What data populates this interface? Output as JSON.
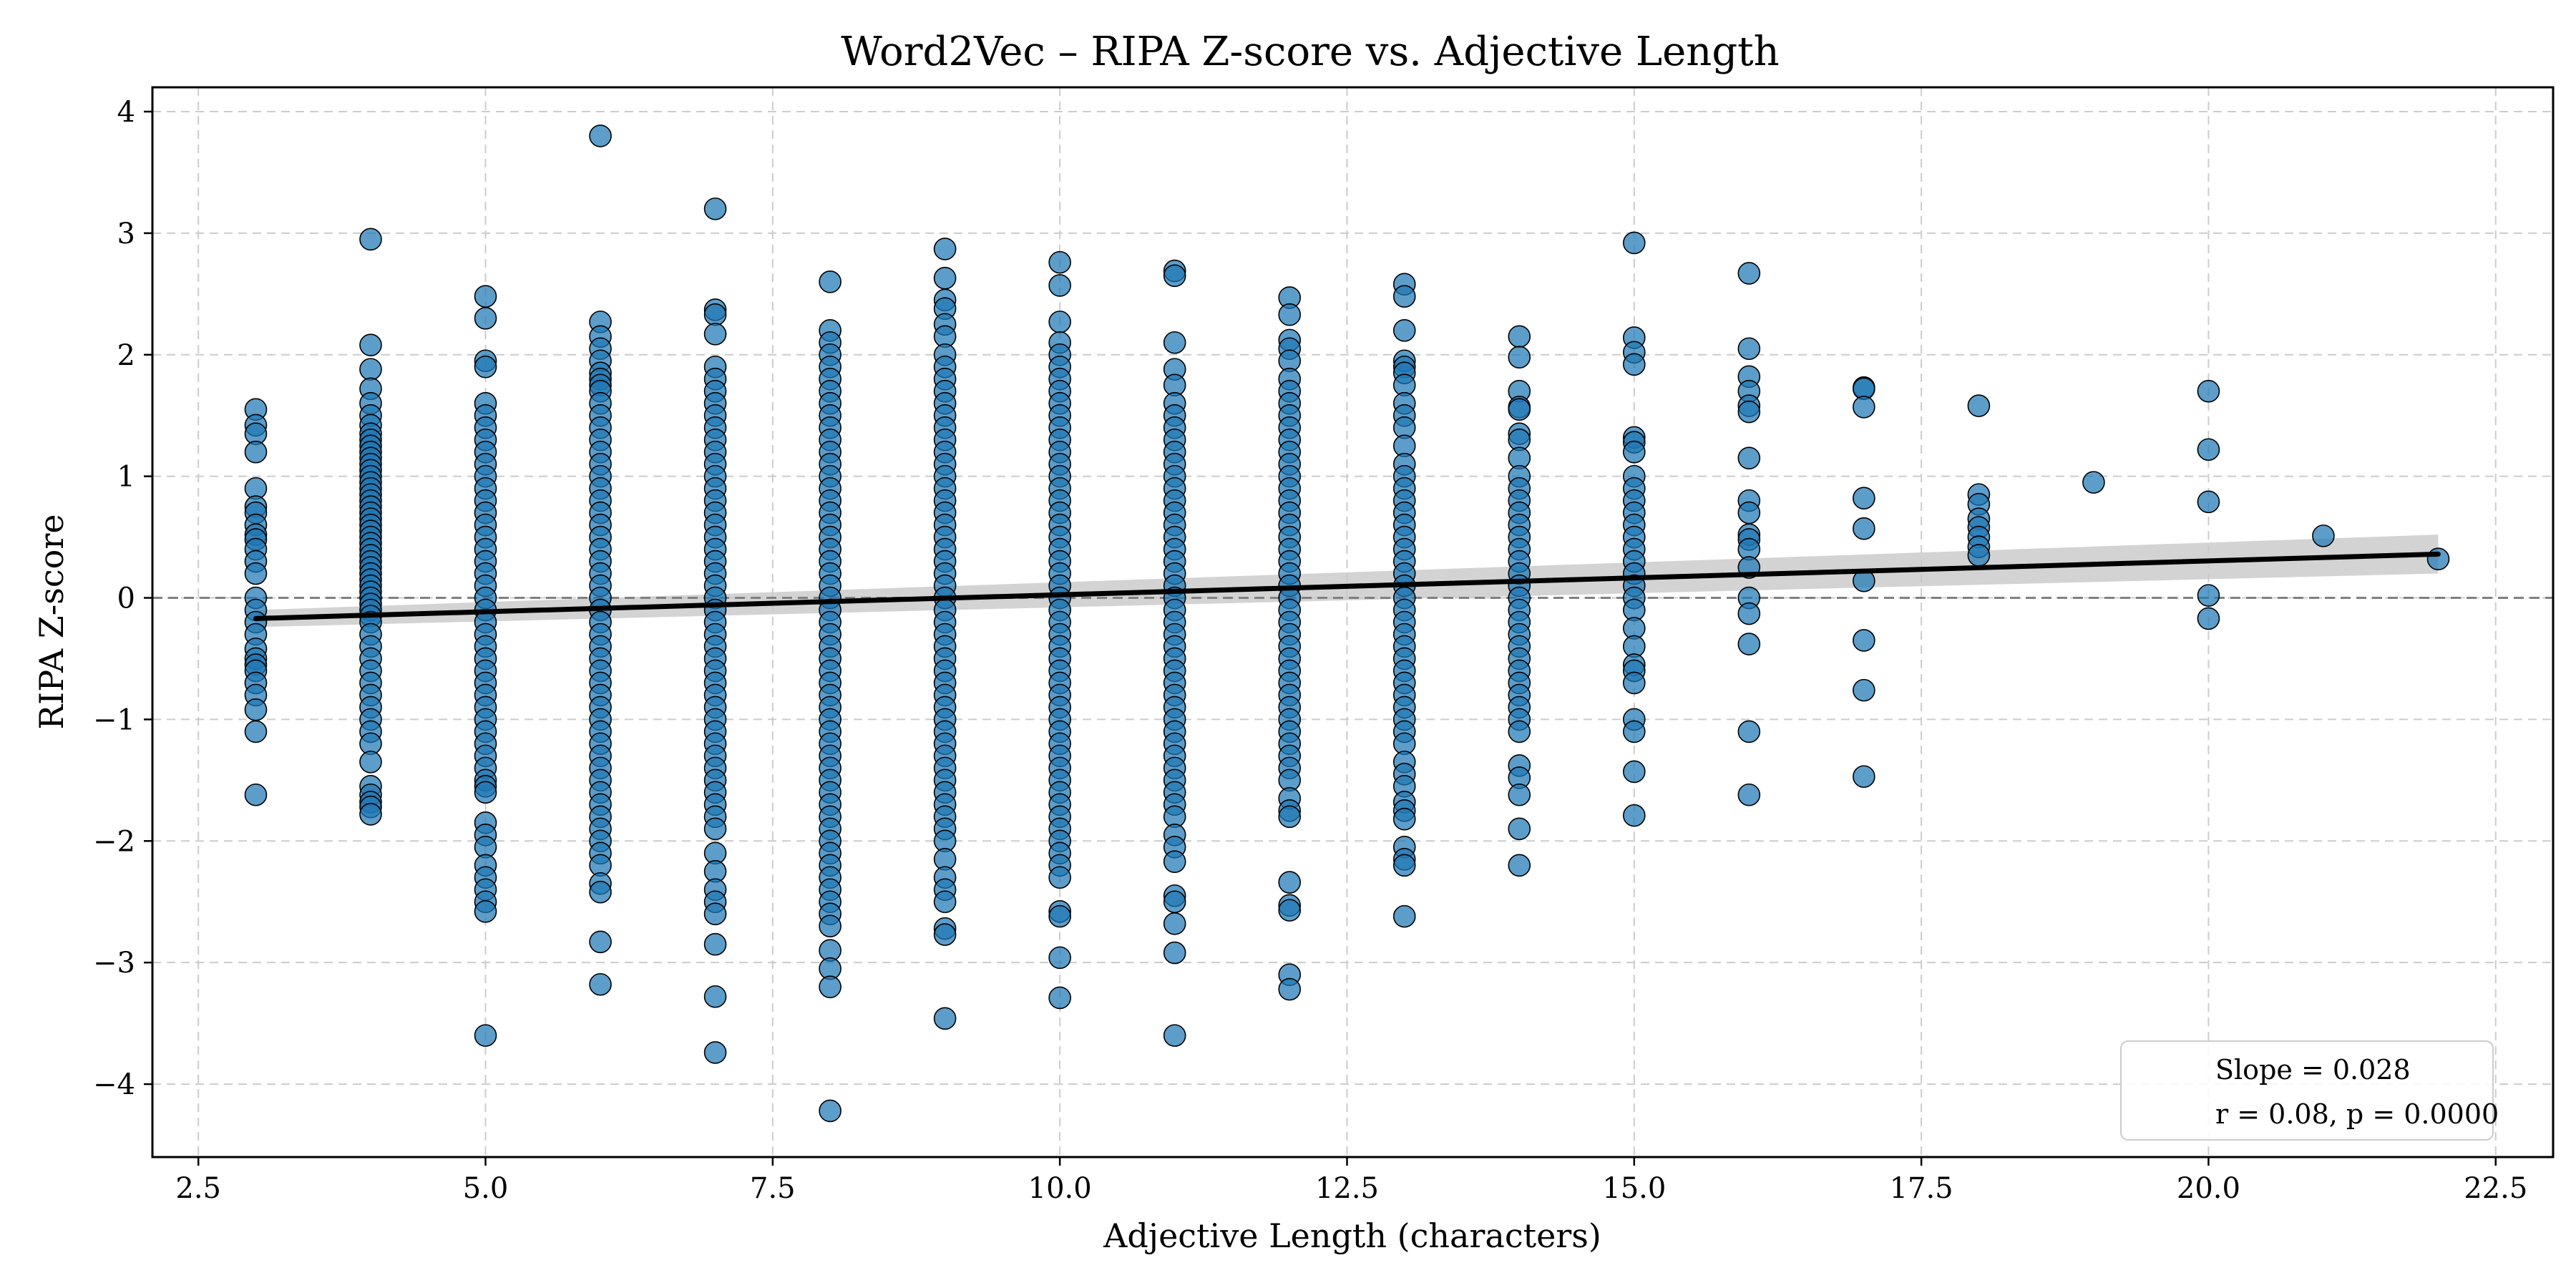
{
  "chart_data": {
    "type": "scatter",
    "title": "Word2Vec – RIPA Z-score vs. Adjective Length",
    "xlabel": "Adjective Length (characters)",
    "ylabel": "RIPA Z-score",
    "xlim": [
      2.1,
      23.0
    ],
    "ylim": [
      -4.6,
      4.2
    ],
    "xticks": [
      2.5,
      5.0,
      7.5,
      10.0,
      12.5,
      15.0,
      17.5,
      20.0,
      22.5
    ],
    "xtick_labels": [
      "2.5",
      "5.0",
      "7.5",
      "10.0",
      "12.5",
      "15.0",
      "17.5",
      "20.0",
      "22.5"
    ],
    "yticks": [
      -4,
      -3,
      -2,
      -1,
      0,
      1,
      2,
      3,
      4
    ],
    "ytick_labels": [
      "−4",
      "−3",
      "−2",
      "−1",
      "0",
      "1",
      "2",
      "3",
      "4"
    ],
    "grid": true,
    "zero_line": 0,
    "legend_position": "lower-right",
    "annotation": {
      "line1": "Slope = 0.028",
      "line2": "r = 0.08, p = 0.0000"
    },
    "regression": {
      "slope": 0.028,
      "x": [
        3,
        22
      ],
      "y": [
        -0.17,
        0.36
      ],
      "ci_half_width_start": 0.07,
      "ci_half_width_end": 0.16
    },
    "colors": {
      "points": "#1f77b4",
      "point_edge": "#000000",
      "regression": "#000000",
      "ci_band": "#c8c8c8",
      "grid": "#cccccc",
      "zero_line": "#808080"
    },
    "points": [
      {
        "x": 3,
        "y": [
          1.55,
          1.42,
          1.35,
          1.2,
          0.9,
          0.75,
          0.7,
          0.6,
          0.52,
          0.48,
          0.4,
          0.3,
          0.2,
          0.0,
          -0.1,
          -0.2,
          -0.3,
          -0.42,
          -0.5,
          -0.55,
          -0.6,
          -0.7,
          -0.8,
          -0.92,
          -1.1,
          -1.62
        ]
      },
      {
        "x": 4,
        "y": [
          2.95,
          2.08,
          1.88,
          1.72,
          1.6,
          1.5,
          1.42,
          1.35,
          1.3,
          1.25,
          1.2,
          1.15,
          1.1,
          1.05,
          1.0,
          0.95,
          0.9,
          0.85,
          0.8,
          0.75,
          0.7,
          0.65,
          0.6,
          0.55,
          0.5,
          0.45,
          0.4,
          0.35,
          0.3,
          0.25,
          0.2,
          0.15,
          0.1,
          0.05,
          0.0,
          -0.05,
          -0.1,
          -0.15,
          -0.2,
          -0.3,
          -0.4,
          -0.5,
          -0.6,
          -0.7,
          -0.8,
          -0.9,
          -1.0,
          -1.1,
          -1.2,
          -1.35,
          -1.55,
          -1.62,
          -1.68,
          -1.72,
          -1.78
        ]
      },
      {
        "x": 5,
        "y": [
          2.48,
          2.3,
          1.95,
          1.9,
          1.6,
          1.5,
          1.4,
          1.3,
          1.2,
          1.1,
          1.0,
          0.9,
          0.8,
          0.7,
          0.6,
          0.5,
          0.4,
          0.3,
          0.2,
          0.1,
          0.0,
          -0.1,
          -0.2,
          -0.3,
          -0.4,
          -0.5,
          -0.6,
          -0.7,
          -0.8,
          -0.9,
          -1.0,
          -1.1,
          -1.2,
          -1.3,
          -1.4,
          -1.5,
          -1.55,
          -1.6,
          -1.85,
          -1.95,
          -2.05,
          -2.2,
          -2.3,
          -2.4,
          -2.5,
          -2.58,
          -3.6
        ]
      },
      {
        "x": 6,
        "y": [
          3.8,
          2.27,
          2.15,
          2.05,
          1.95,
          1.85,
          1.8,
          1.75,
          1.7,
          1.6,
          1.5,
          1.4,
          1.3,
          1.2,
          1.1,
          1.0,
          0.9,
          0.8,
          0.7,
          0.6,
          0.5,
          0.4,
          0.3,
          0.2,
          0.1,
          0.0,
          -0.1,
          -0.2,
          -0.3,
          -0.4,
          -0.5,
          -0.6,
          -0.7,
          -0.8,
          -0.9,
          -1.0,
          -1.1,
          -1.2,
          -1.3,
          -1.4,
          -1.5,
          -1.6,
          -1.7,
          -1.8,
          -1.9,
          -2.0,
          -2.1,
          -2.2,
          -2.35,
          -2.42,
          -2.83,
          -3.18
        ]
      },
      {
        "x": 7,
        "y": [
          3.2,
          2.37,
          2.33,
          2.17,
          1.9,
          1.8,
          1.7,
          1.6,
          1.5,
          1.4,
          1.3,
          1.2,
          1.1,
          1.0,
          0.9,
          0.8,
          0.7,
          0.6,
          0.5,
          0.4,
          0.3,
          0.2,
          0.1,
          0.0,
          -0.1,
          -0.2,
          -0.3,
          -0.4,
          -0.5,
          -0.6,
          -0.7,
          -0.8,
          -0.9,
          -1.0,
          -1.1,
          -1.2,
          -1.3,
          -1.4,
          -1.5,
          -1.6,
          -1.7,
          -1.8,
          -1.9,
          -2.1,
          -2.25,
          -2.4,
          -2.5,
          -2.6,
          -2.85,
          -3.28,
          -3.74
        ]
      },
      {
        "x": 8,
        "y": [
          2.6,
          2.2,
          2.1,
          2.0,
          1.9,
          1.8,
          1.7,
          1.6,
          1.5,
          1.4,
          1.3,
          1.2,
          1.1,
          1.0,
          0.9,
          0.8,
          0.7,
          0.6,
          0.5,
          0.4,
          0.3,
          0.2,
          0.1,
          0.0,
          -0.1,
          -0.2,
          -0.3,
          -0.4,
          -0.5,
          -0.6,
          -0.7,
          -0.8,
          -0.9,
          -1.0,
          -1.1,
          -1.2,
          -1.3,
          -1.4,
          -1.5,
          -1.6,
          -1.7,
          -1.8,
          -1.9,
          -2.0,
          -2.1,
          -2.2,
          -2.3,
          -2.4,
          -2.5,
          -2.6,
          -2.7,
          -2.9,
          -3.05,
          -3.2,
          -4.22
        ]
      },
      {
        "x": 9,
        "y": [
          2.87,
          2.63,
          2.45,
          2.38,
          2.25,
          2.15,
          2.0,
          1.9,
          1.8,
          1.7,
          1.6,
          1.5,
          1.4,
          1.3,
          1.2,
          1.1,
          1.0,
          0.9,
          0.8,
          0.7,
          0.6,
          0.5,
          0.4,
          0.3,
          0.2,
          0.1,
          0.0,
          -0.1,
          -0.2,
          -0.3,
          -0.4,
          -0.5,
          -0.6,
          -0.7,
          -0.8,
          -0.9,
          -1.0,
          -1.1,
          -1.2,
          -1.3,
          -1.4,
          -1.5,
          -1.6,
          -1.7,
          -1.8,
          -1.9,
          -2.0,
          -2.15,
          -2.3,
          -2.4,
          -2.5,
          -2.72,
          -2.77,
          -3.46
        ]
      },
      {
        "x": 10,
        "y": [
          2.76,
          2.57,
          2.27,
          2.1,
          2.0,
          1.9,
          1.8,
          1.7,
          1.6,
          1.5,
          1.4,
          1.3,
          1.2,
          1.1,
          1.0,
          0.9,
          0.8,
          0.7,
          0.6,
          0.5,
          0.4,
          0.3,
          0.2,
          0.1,
          0.0,
          -0.1,
          -0.2,
          -0.3,
          -0.4,
          -0.5,
          -0.6,
          -0.7,
          -0.8,
          -0.9,
          -1.0,
          -1.1,
          -1.2,
          -1.3,
          -1.4,
          -1.5,
          -1.6,
          -1.7,
          -1.8,
          -1.9,
          -2.0,
          -2.1,
          -2.2,
          -2.3,
          -2.58,
          -2.62,
          -2.96,
          -3.29
        ]
      },
      {
        "x": 11,
        "y": [
          2.69,
          2.65,
          2.1,
          1.88,
          1.75,
          1.6,
          1.5,
          1.4,
          1.3,
          1.2,
          1.1,
          1.0,
          0.9,
          0.8,
          0.7,
          0.6,
          0.5,
          0.4,
          0.3,
          0.2,
          0.1,
          0.0,
          -0.1,
          -0.2,
          -0.3,
          -0.4,
          -0.5,
          -0.6,
          -0.7,
          -0.8,
          -0.9,
          -1.0,
          -1.1,
          -1.2,
          -1.3,
          -1.4,
          -1.5,
          -1.6,
          -1.7,
          -1.8,
          -1.95,
          -2.05,
          -2.17,
          -2.45,
          -2.5,
          -2.68,
          -2.92,
          -3.6
        ]
      },
      {
        "x": 12,
        "y": [
          2.47,
          2.33,
          2.12,
          2.05,
          1.95,
          1.8,
          1.7,
          1.6,
          1.5,
          1.4,
          1.3,
          1.2,
          1.1,
          1.0,
          0.9,
          0.8,
          0.7,
          0.6,
          0.5,
          0.4,
          0.3,
          0.2,
          0.1,
          0.0,
          -0.1,
          -0.2,
          -0.3,
          -0.4,
          -0.5,
          -0.6,
          -0.7,
          -0.8,
          -0.9,
          -1.0,
          -1.1,
          -1.2,
          -1.3,
          -1.4,
          -1.5,
          -1.65,
          -1.75,
          -1.8,
          -2.34,
          -2.53,
          -2.57,
          -3.1,
          -3.22
        ]
      },
      {
        "x": 13,
        "y": [
          2.58,
          2.48,
          2.2,
          1.95,
          1.9,
          1.85,
          1.75,
          1.6,
          1.5,
          1.4,
          1.25,
          1.1,
          1.0,
          0.9,
          0.8,
          0.7,
          0.6,
          0.5,
          0.4,
          0.3,
          0.2,
          0.1,
          0.0,
          -0.1,
          -0.2,
          -0.3,
          -0.4,
          -0.5,
          -0.6,
          -0.7,
          -0.8,
          -0.9,
          -1.0,
          -1.1,
          -1.2,
          -1.35,
          -1.45,
          -1.55,
          -1.68,
          -1.75,
          -1.82,
          -2.05,
          -2.15,
          -2.2,
          -2.62
        ]
      },
      {
        "x": 14,
        "y": [
          2.15,
          1.98,
          1.7,
          1.57,
          1.55,
          1.35,
          1.3,
          1.15,
          1.0,
          0.9,
          0.8,
          0.7,
          0.6,
          0.5,
          0.4,
          0.3,
          0.2,
          0.1,
          0.0,
          -0.1,
          -0.2,
          -0.3,
          -0.4,
          -0.5,
          -0.6,
          -0.7,
          -0.8,
          -0.9,
          -1.0,
          -1.1,
          -1.38,
          -1.48,
          -1.62,
          -1.9,
          -2.2
        ]
      },
      {
        "x": 15,
        "y": [
          2.92,
          2.14,
          2.02,
          1.92,
          1.32,
          1.28,
          1.2,
          1.0,
          0.9,
          0.8,
          0.7,
          0.6,
          0.5,
          0.4,
          0.3,
          0.2,
          0.1,
          0.0,
          -0.1,
          -0.25,
          -0.4,
          -0.55,
          -0.6,
          -0.7,
          -1.0,
          -1.1,
          -1.43,
          -1.79
        ]
      },
      {
        "x": 16,
        "y": [
          2.67,
          2.05,
          1.82,
          1.7,
          1.58,
          1.53,
          1.15,
          0.8,
          0.7,
          0.52,
          0.48,
          0.4,
          0.25,
          0.0,
          -0.13,
          -0.38,
          -1.1,
          -1.62
        ]
      },
      {
        "x": 17,
        "y": [
          1.73,
          1.72,
          1.57,
          0.82,
          0.57,
          0.14,
          -0.35,
          -0.76,
          -1.47
        ]
      },
      {
        "x": 18,
        "y": [
          1.58,
          0.85,
          0.77,
          0.65,
          0.58,
          0.5,
          0.42,
          0.35
        ]
      },
      {
        "x": 19,
        "y": [
          0.95
        ]
      },
      {
        "x": 20,
        "y": [
          1.7,
          1.22,
          0.79,
          0.02,
          -0.17
        ]
      },
      {
        "x": 21,
        "y": [
          0.51
        ]
      },
      {
        "x": 22,
        "y": [
          0.32
        ]
      }
    ]
  }
}
